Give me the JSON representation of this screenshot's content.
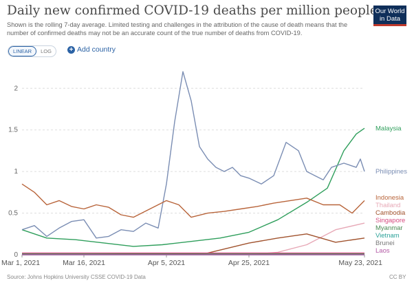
{
  "header": {
    "title": "Daily new confirmed COVID-19 deaths per million people",
    "subtitle": "Shown is the rolling 7-day average. Limited testing and challenges in the attribution of the cause of death means that the number of confirmed deaths may not be an accurate count of the true number of deaths from COVID-19.",
    "logo_line1": "Our World",
    "logo_line2": "in Data"
  },
  "controls": {
    "linear_label": "LINEAR",
    "log_label": "LOG",
    "add_country_label": "Add country",
    "selected_scale": "LINEAR"
  },
  "footer": {
    "source": "Source: Johns Hopkins University CSSE COVID-19 Data",
    "license": "CC BY"
  },
  "chart_data": {
    "type": "line",
    "x_ticks": [
      "Mar 1, 2021",
      "Mar 16, 2021",
      "Apr 5, 2021",
      "Apr 25, 2021",
      "May 23, 2021"
    ],
    "y_ticks": [
      "0",
      "0.5",
      "1",
      "1.5",
      "2"
    ],
    "ylim": [
      0,
      2.3
    ],
    "grid": true,
    "legend": "right-end-labels",
    "x_start": "2021-03-01",
    "x_end": "2021-05-23",
    "series": [
      {
        "name": "Malaysia",
        "color": "#2e9e5b",
        "dates": [
          "2021-03-01",
          "2021-03-07",
          "2021-03-14",
          "2021-03-21",
          "2021-03-28",
          "2021-04-04",
          "2021-04-11",
          "2021-04-18",
          "2021-04-25",
          "2021-05-02",
          "2021-05-09",
          "2021-05-14",
          "2021-05-18",
          "2021-05-21",
          "2021-05-23"
        ],
        "values": [
          0.3,
          0.2,
          0.18,
          0.14,
          0.1,
          0.12,
          0.16,
          0.2,
          0.27,
          0.42,
          0.63,
          0.8,
          1.25,
          1.45,
          1.52
        ]
      },
      {
        "name": "Philippines",
        "color": "#7a8db3",
        "dates": [
          "2021-03-01",
          "2021-03-04",
          "2021-03-07",
          "2021-03-10",
          "2021-03-13",
          "2021-03-16",
          "2021-03-19",
          "2021-03-22",
          "2021-03-25",
          "2021-03-28",
          "2021-03-31",
          "2021-04-03",
          "2021-04-05",
          "2021-04-07",
          "2021-04-09",
          "2021-04-11",
          "2021-04-13",
          "2021-04-15",
          "2021-04-17",
          "2021-04-19",
          "2021-04-21",
          "2021-04-23",
          "2021-04-25",
          "2021-04-28",
          "2021-05-01",
          "2021-05-04",
          "2021-05-07",
          "2021-05-09",
          "2021-05-11",
          "2021-05-13",
          "2021-05-15",
          "2021-05-18",
          "2021-05-21",
          "2021-05-22",
          "2021-05-23"
        ],
        "values": [
          0.3,
          0.35,
          0.22,
          0.32,
          0.4,
          0.42,
          0.2,
          0.22,
          0.3,
          0.28,
          0.38,
          0.32,
          0.85,
          1.6,
          2.2,
          1.85,
          1.3,
          1.15,
          1.05,
          1.0,
          1.05,
          0.95,
          0.92,
          0.85,
          0.95,
          1.35,
          1.25,
          1.0,
          0.95,
          0.9,
          1.05,
          1.1,
          1.05,
          1.15,
          1.0
        ]
      },
      {
        "name": "Indonesia",
        "color": "#b8643a",
        "dates": [
          "2021-03-01",
          "2021-03-04",
          "2021-03-07",
          "2021-03-10",
          "2021-03-13",
          "2021-03-16",
          "2021-03-19",
          "2021-03-22",
          "2021-03-25",
          "2021-03-28",
          "2021-04-01",
          "2021-04-05",
          "2021-04-08",
          "2021-04-11",
          "2021-04-15",
          "2021-04-19",
          "2021-04-23",
          "2021-04-27",
          "2021-05-01",
          "2021-05-05",
          "2021-05-09",
          "2021-05-13",
          "2021-05-17",
          "2021-05-20",
          "2021-05-23"
        ],
        "values": [
          0.85,
          0.75,
          0.6,
          0.65,
          0.58,
          0.55,
          0.6,
          0.57,
          0.48,
          0.45,
          0.55,
          0.65,
          0.6,
          0.45,
          0.5,
          0.52,
          0.55,
          0.58,
          0.62,
          0.65,
          0.68,
          0.6,
          0.6,
          0.5,
          0.65
        ]
      },
      {
        "name": "Thailand",
        "color": "#e7a8b6",
        "dates": [
          "2021-03-01",
          "2021-04-25",
          "2021-05-02",
          "2021-05-09",
          "2021-05-16",
          "2021-05-23"
        ],
        "values": [
          0.0,
          0.0,
          0.03,
          0.12,
          0.3,
          0.38
        ]
      },
      {
        "name": "Cambodia",
        "color": "#a0522d",
        "dates": [
          "2021-03-01",
          "2021-04-15",
          "2021-04-25",
          "2021-05-02",
          "2021-05-09",
          "2021-05-16",
          "2021-05-23"
        ],
        "values": [
          0.0,
          0.02,
          0.14,
          0.2,
          0.25,
          0.15,
          0.2
        ]
      },
      {
        "name": "Singapore",
        "color": "#d54b7f",
        "dates": [
          "2021-03-01",
          "2021-05-23"
        ],
        "values": [
          0.02,
          0.02
        ]
      },
      {
        "name": "Myanmar",
        "color": "#4b8a54",
        "dates": [
          "2021-03-01",
          "2021-05-23"
        ],
        "values": [
          0.01,
          0.01
        ]
      },
      {
        "name": "Vietnam",
        "color": "#2aa198",
        "dates": [
          "2021-03-01",
          "2021-05-23"
        ],
        "values": [
          0.0,
          0.0
        ]
      },
      {
        "name": "Brunei",
        "color": "#777777",
        "dates": [
          "2021-03-01",
          "2021-05-23"
        ],
        "values": [
          0.0,
          0.0
        ]
      },
      {
        "name": "Laos",
        "color": "#b35aa5",
        "dates": [
          "2021-03-01",
          "2021-05-23"
        ],
        "values": [
          0.0,
          0.0
        ]
      }
    ]
  }
}
